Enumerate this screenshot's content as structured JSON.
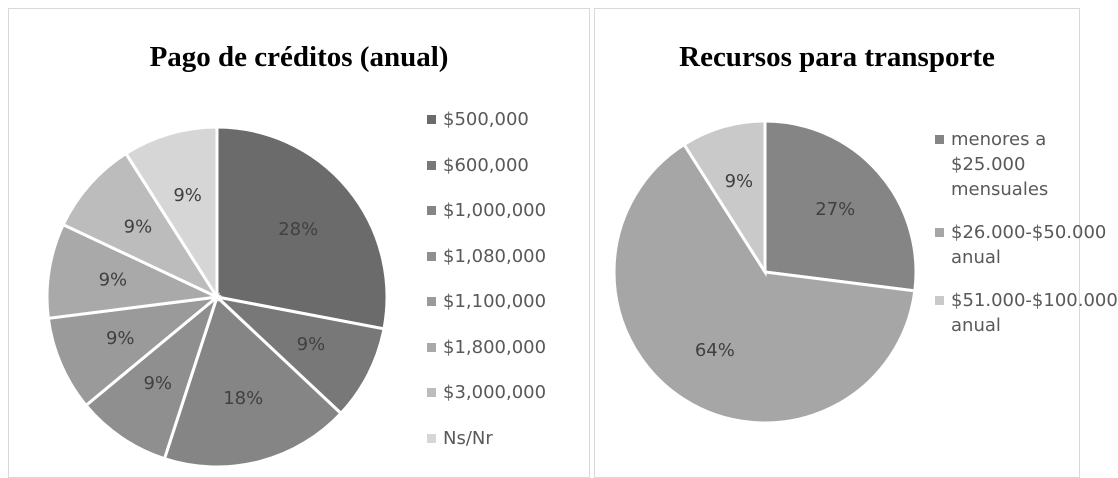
{
  "chart_data": [
    {
      "type": "pie",
      "title": "Pago de créditos (anual)",
      "categories": [
        "$500,000",
        "$600,000",
        "$1,000,000",
        "$1,080,000",
        "$1,100,000",
        "$1,800,000",
        "$3,000,000",
        "Ns/Nr"
      ],
      "values": [
        28,
        9,
        18,
        9,
        9,
        9,
        9,
        9
      ],
      "value_labels": [
        "28%",
        "9%",
        "18%",
        "9%",
        "9%",
        "9%",
        "9%",
        "9%"
      ],
      "colors": [
        "#6b6b6b",
        "#787878",
        "#858585",
        "#8f8f8f",
        "#9a9a9a",
        "#a9a9a9",
        "#bcbcbc",
        "#d6d6d6"
      ],
      "legend": "right"
    },
    {
      "type": "pie",
      "title": "Recursos para transporte",
      "categories": [
        "menores a $25.000 mensuales",
        "$26.000-$50.000 anual",
        "$51.000-$100.000 anual"
      ],
      "values": [
        27,
        64,
        9
      ],
      "value_labels": [
        "27%",
        "64%",
        "9%"
      ],
      "colors": [
        "#858585",
        "#a6a6a6",
        "#c9c9c9"
      ],
      "legend": "right"
    }
  ]
}
